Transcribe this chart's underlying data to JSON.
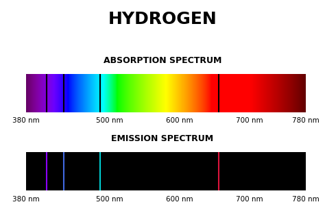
{
  "title": "HYDROGEN",
  "title_fontsize": 18,
  "absorption_label": "ABSORPTION SPECTRUM",
  "emission_label": "EMISSION SPECTRUM",
  "label_fontsize": 9,
  "wl_min": 380,
  "wl_max": 780,
  "tick_positions": [
    380,
    500,
    600,
    700,
    780
  ],
  "tick_labels": [
    "380 nm",
    "500 nm",
    "600 nm",
    "700 nm",
    "780 nm"
  ],
  "absorption_lines": [
    410,
    434,
    486,
    656
  ],
  "emission_lines": [
    410,
    434,
    486,
    656
  ],
  "emission_colors": [
    "#8B00FF",
    "#4169E1",
    "#00CED1",
    "#DC143C"
  ],
  "background_color": "#ffffff"
}
